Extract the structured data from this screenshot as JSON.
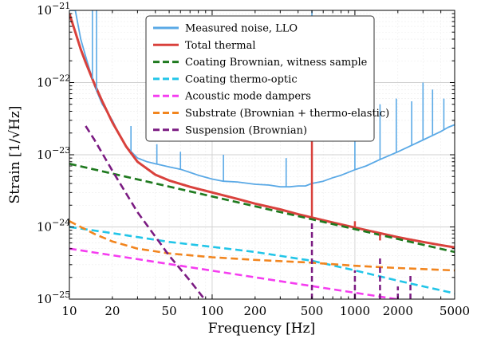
{
  "chart_data": {
    "type": "line",
    "xscale": "log",
    "yscale": "log",
    "xlim": [
      10,
      5000
    ],
    "ylim": [
      1e-25,
      1e-21
    ],
    "xlabel": "Frequency [Hz]",
    "ylabel": "Strain",
    "ylabel_unit": "[1/√Hz]",
    "grid": true,
    "legend_position": "top-right",
    "x_ticks": [
      {
        "value": 10,
        "label": "10"
      },
      {
        "value": 20,
        "label": "20"
      },
      {
        "value": 50,
        "label": "50"
      },
      {
        "value": 100,
        "label": "100"
      },
      {
        "value": 200,
        "label": "200"
      },
      {
        "value": 500,
        "label": "500"
      },
      {
        "value": 1000,
        "label": "1000"
      },
      {
        "value": 2000,
        "label": "2000"
      },
      {
        "value": 5000,
        "label": "5000"
      }
    ],
    "y_ticks": [
      {
        "value": 1e-25,
        "mantissa": "10",
        "exponent": "−25"
      },
      {
        "value": 1e-24,
        "mantissa": "10",
        "exponent": "−24"
      },
      {
        "value": 1e-23,
        "mantissa": "10",
        "exponent": "−23"
      },
      {
        "value": 1e-22,
        "mantissa": "10",
        "exponent": "−22"
      },
      {
        "value": 1e-21,
        "mantissa": "10",
        "exponent": "−21"
      }
    ],
    "series": [
      {
        "name": "Measured noise, LLO",
        "color": "#5aa9e6",
        "style": "solid",
        "x": [
          10,
          11,
          12,
          13,
          14,
          15,
          17,
          20,
          22,
          25,
          30,
          35,
          40,
          50,
          60,
          70,
          80,
          100,
          120,
          150,
          200,
          250,
          300,
          350,
          400,
          450,
          500,
          600,
          700,
          800,
          1000,
          1200,
          1500,
          2000,
          2500,
          3000,
          3500,
          4000,
          4500,
          5000
        ],
        "y": [
          1e-21,
          1e-21,
          4e-22,
          2.3e-22,
          1.4e-22,
          9e-23,
          5e-23,
          3e-23,
          2e-23,
          1.3e-23,
          9e-24,
          8e-24,
          7.5e-24,
          6.8e-24,
          6.3e-24,
          5.7e-24,
          5.2e-24,
          4.6e-24,
          4.3e-24,
          4.2e-24,
          3.9e-24,
          3.8e-24,
          3.6e-24,
          3.6e-24,
          3.7e-24,
          3.7e-24,
          4e-24,
          4.3e-24,
          4.8e-24,
          5.2e-24,
          6.2e-24,
          7e-24,
          8.6e-24,
          1.1e-23,
          1.35e-23,
          1.6e-23,
          1.85e-23,
          2.1e-23,
          2.4e-23,
          2.6e-23
        ]
      },
      {
        "name": "Total thermal",
        "color": "#d9413c",
        "style": "solid",
        "x": [
          10,
          11,
          12,
          13,
          15,
          17,
          20,
          25,
          30,
          40,
          50,
          70,
          100,
          150,
          200,
          300,
          400,
          500,
          700,
          1000,
          1500,
          2000,
          3000,
          4000,
          5000
        ],
        "y": [
          9e-22,
          5e-22,
          2.9e-22,
          1.9e-22,
          9.5e-23,
          5.5e-23,
          2.8e-23,
          1.3e-23,
          8e-24,
          5.3e-24,
          4.4e-24,
          3.6e-24,
          3e-24,
          2.45e-24,
          2.1e-24,
          1.75e-24,
          1.5e-24,
          1.35e-24,
          1.15e-24,
          9.8e-25,
          8.2e-25,
          7.2e-25,
          6.2e-25,
          5.6e-25,
          5.2e-25
        ]
      },
      {
        "name": "Coating Brownian, witness sample",
        "color": "#1f7a1f",
        "style": "dashed",
        "x": [
          10,
          5000
        ],
        "y": [
          7.5e-24,
          4.5e-25
        ]
      },
      {
        "name": "Coating thermo-optic",
        "color": "#22c5e8",
        "style": "dashed",
        "x": [
          10,
          20,
          50,
          100,
          200,
          500,
          1000,
          2000,
          5000
        ],
        "y": [
          1e-24,
          8.2e-25,
          6.2e-25,
          5.3e-25,
          4.5e-25,
          3.4e-25,
          2.5e-25,
          1.8e-25,
          1.2e-25
        ]
      },
      {
        "name": "Acoustic mode dampers",
        "color": "#f53df0",
        "style": "dashed",
        "x": [
          10,
          5000
        ],
        "y": [
          5e-25,
          7.5e-26
        ]
      },
      {
        "name": "Substrate (Brownian + thermo-elastic)",
        "color": "#f2851e",
        "style": "dashed",
        "x": [
          10,
          15,
          20,
          30,
          50,
          100,
          200,
          500,
          1000,
          2000,
          5000
        ],
        "y": [
          1.2e-24,
          8e-25,
          6.3e-25,
          5e-25,
          4.3e-25,
          3.8e-25,
          3.5e-25,
          3.2e-25,
          2.9e-25,
          2.7e-25,
          2.5e-25
        ]
      },
      {
        "name": "Suspension (Brownian)",
        "color": "#7b1b82",
        "style": "dashed",
        "x": [
          13,
          15,
          20,
          30,
          50,
          70,
          92
        ],
        "y": [
          2.5e-23,
          1.6e-23,
          6e-24,
          1.6e-24,
          4e-25,
          1.8e-25,
          9e-26
        ]
      }
    ],
    "spikes": [
      {
        "series": "Measured noise, LLO",
        "x": 14.5,
        "y_top": 1e-21
      },
      {
        "series": "Measured noise, LLO",
        "x": 15.5,
        "y_top": 1e-21
      },
      {
        "series": "Measured noise, LLO",
        "x": 27,
        "y_top": 2.5e-23
      },
      {
        "series": "Measured noise, LLO",
        "x": 41,
        "y_top": 1.4e-23
      },
      {
        "series": "Measured noise, LLO",
        "x": 60,
        "y_top": 1.1e-23
      },
      {
        "series": "Measured noise, LLO",
        "x": 120,
        "y_top": 1e-23
      },
      {
        "series": "Measured noise, LLO",
        "x": 330,
        "y_top": 9e-24
      },
      {
        "series": "Measured noise, LLO",
        "x": 500,
        "y_top": 1e-21
      },
      {
        "series": "Measured noise, LLO",
        "x": 1000,
        "y_top": 3e-23
      },
      {
        "series": "Measured noise, LLO",
        "x": 1500,
        "y_top": 5e-23
      },
      {
        "series": "Measured noise, LLO",
        "x": 1950,
        "y_top": 6e-23
      },
      {
        "series": "Measured noise, LLO",
        "x": 2500,
        "y_top": 5.5e-23
      },
      {
        "series": "Measured noise, LLO",
        "x": 3000,
        "y_top": 1e-22
      },
      {
        "series": "Measured noise, LLO",
        "x": 3500,
        "y_top": 8e-23
      },
      {
        "series": "Measured noise, LLO",
        "x": 4200,
        "y_top": 6e-23
      },
      {
        "series": "Total thermal",
        "x": 500,
        "y_top": 1e-22
      },
      {
        "series": "Total thermal",
        "x": 1000,
        "y_top": 1.2e-24
      },
      {
        "series": "Total thermal",
        "x": 1500,
        "y_top": 6.5e-25
      },
      {
        "series": "Suspension (Brownian)",
        "x": 500,
        "y_top": 1.2e-24
      },
      {
        "series": "Suspension (Brownian)",
        "x": 1000,
        "y_top": 2.5e-25
      },
      {
        "series": "Suspension (Brownian)",
        "x": 1500,
        "y_top": 4e-25
      },
      {
        "series": "Suspension (Brownian)",
        "x": 2000,
        "y_top": 1.5e-25
      },
      {
        "series": "Suspension (Brownian)",
        "x": 2450,
        "y_top": 2.2e-25
      }
    ]
  }
}
